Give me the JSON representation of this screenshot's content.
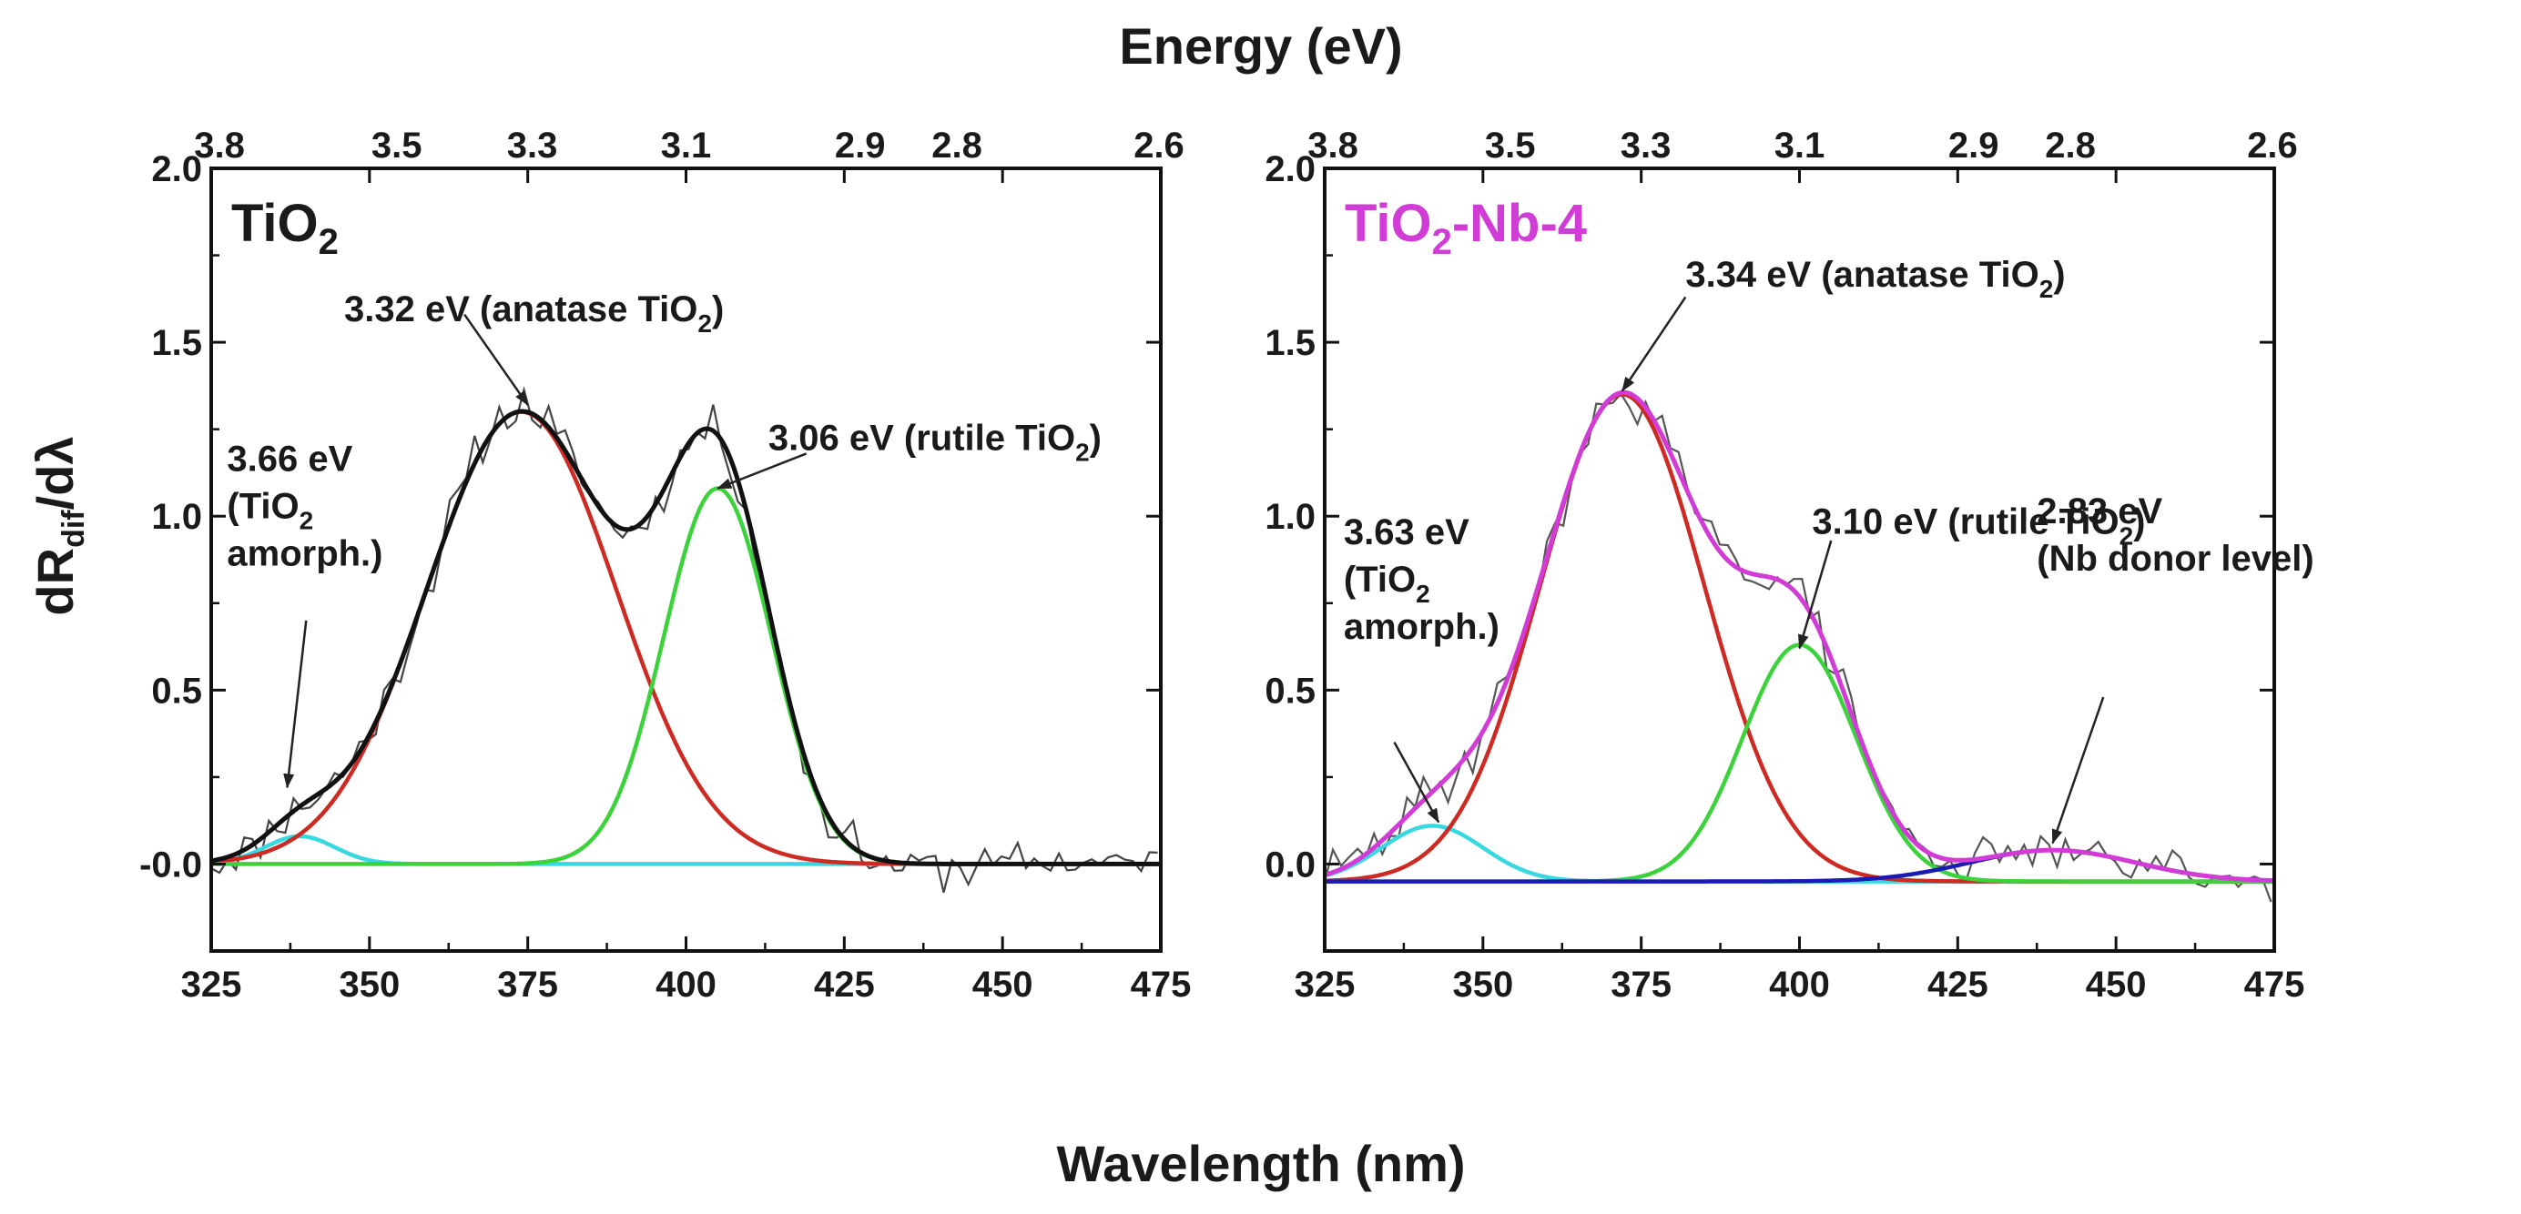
{
  "figure": {
    "top_title": "Energy (eV)",
    "bottom_title": "Wavelength (nm)",
    "ylabel_parts": [
      "dR",
      "dif",
      "/d",
      "λ"
    ]
  },
  "chart_data": [
    {
      "type": "line",
      "panel_label": "TiO2",
      "panel_label_parts": [
        "TiO",
        "2",
        ""
      ],
      "panel_label_color": "#1a1a1a",
      "xlabel": "Wavelength (nm)",
      "x2label": "Energy (eV)",
      "ylabel": "dRdif/dλ",
      "xlim": [
        325,
        475
      ],
      "ylim": [
        -0.25,
        2.0
      ],
      "x_ticks": [
        "325",
        "350",
        "375",
        "400",
        "425",
        "450",
        "475"
      ],
      "y_ticks": [
        "-0.0",
        "0.5",
        "1.0",
        "1.5",
        "2.0"
      ],
      "y_tick_values": [
        0.0,
        0.5,
        1.0,
        1.5,
        2.0
      ],
      "top_ticks": [
        {
          "label": "3.8",
          "nm": 326.3
        },
        {
          "label": "3.5",
          "nm": 354.3
        },
        {
          "label": "3.3",
          "nm": 375.7
        },
        {
          "label": "3.1",
          "nm": 400.0
        },
        {
          "label": "2.9",
          "nm": 427.5
        },
        {
          "label": "2.8",
          "nm": 442.8
        },
        {
          "label": "2.6",
          "nm": 476.9
        }
      ],
      "components": [
        {
          "name": "3.66 eV (TiO2 amorph.)",
          "color": "#38d8e0",
          "center_nm": 339,
          "amplitude": 0.08,
          "width_nm": 5.5
        },
        {
          "name": "3.32 eV (anatase TiO2)",
          "color": "#cc2a22",
          "center_nm": 374,
          "amplitude": 1.3,
          "width_nm": 15.0
        },
        {
          "name": "3.06 eV (rutile TiO2)",
          "color": "#3cd23c",
          "center_nm": 405,
          "amplitude": 1.08,
          "width_nm": 8.5
        }
      ],
      "sum_curve": {
        "name": "cumulative fit",
        "color": "#111111"
      },
      "raw_data": {
        "name": "experimental",
        "color": "#444444",
        "noise_amplitude": 0.055,
        "seed": 11
      },
      "baseline": 0.0,
      "annotations": [
        {
          "lines": [
            [
              {
                "t": "3.32 eV (anatase TiO"
              },
              {
                "t": "2",
                "sub": true
              },
              {
                "t": ")"
              }
            ]
          ],
          "text_nm": 346,
          "text_y": 1.56,
          "arrow_from": [
            365,
            1.58
          ],
          "arrow_to": [
            375,
            1.32
          ]
        },
        {
          "lines": [
            [
              {
                "t": "3.06 eV (rutile TiO"
              },
              {
                "t": "2",
                "sub": true
              },
              {
                "t": ")"
              }
            ]
          ],
          "text_nm": 413,
          "text_y": 1.19,
          "arrow_from": [
            419,
            1.18
          ],
          "arrow_to": [
            405,
            1.08
          ]
        },
        {
          "lines": [
            [
              {
                "t": "3.66 eV"
              }
            ],
            [
              {
                "t": "(TiO"
              },
              {
                "t": "2",
                "sub": true
              }
            ],
            [
              {
                "t": "amorph.)"
              }
            ]
          ],
          "text_nm": 327.5,
          "text_y": 1.13,
          "arrow_from": [
            340,
            0.7
          ],
          "arrow_to": [
            337,
            0.22
          ]
        }
      ]
    },
    {
      "type": "line",
      "panel_label": "TiO2-Nb-4",
      "panel_label_parts": [
        "TiO",
        "2",
        "-Nb-4"
      ],
      "panel_label_color": "#d23cd6",
      "xlabel": "Wavelength (nm)",
      "x2label": "Energy (eV)",
      "ylabel": "dRdif/dλ",
      "xlim": [
        325,
        475
      ],
      "ylim": [
        -0.25,
        2.0
      ],
      "x_ticks": [
        "325",
        "350",
        "375",
        "400",
        "425",
        "450",
        "475"
      ],
      "y_ticks": [
        "0.0",
        "0.5",
        "1.0",
        "1.5",
        "2.0"
      ],
      "y_tick_values": [
        0.0,
        0.5,
        1.0,
        1.5,
        2.0
      ],
      "top_ticks": [
        {
          "label": "3.8",
          "nm": 326.3
        },
        {
          "label": "3.5",
          "nm": 354.3
        },
        {
          "label": "3.3",
          "nm": 375.7
        },
        {
          "label": "3.1",
          "nm": 400.0
        },
        {
          "label": "2.9",
          "nm": 427.5
        },
        {
          "label": "2.8",
          "nm": 442.8
        },
        {
          "label": "2.6",
          "nm": 476.9
        }
      ],
      "components": [
        {
          "name": "3.63 eV (TiO2 amorph.)",
          "color": "#38d8e0",
          "center_nm": 342,
          "amplitude": 0.16,
          "width_nm": 8.0
        },
        {
          "name": "3.34 eV (anatase TiO2)",
          "color": "#cc2a22",
          "center_nm": 372,
          "amplitude": 1.4,
          "width_nm": 13.0
        },
        {
          "name": "3.10 eV (rutile TiO2)",
          "color": "#3cd23c",
          "center_nm": 400,
          "amplitude": 0.68,
          "width_nm": 9.0
        },
        {
          "name": "2.83 eV (Nb donor level)",
          "color": "#1a1ab4",
          "center_nm": 440,
          "amplitude": 0.09,
          "width_nm": 13.0
        }
      ],
      "sum_curve": {
        "name": "cumulative fit",
        "color": "#d23cd6"
      },
      "raw_data": {
        "name": "experimental",
        "color": "#555555",
        "noise_amplitude": 0.05,
        "seed": 29
      },
      "baseline": -0.05,
      "annotations": [
        {
          "lines": [
            [
              {
                "t": "3.34 eV (anatase TiO"
              },
              {
                "t": "2",
                "sub": true
              },
              {
                "t": ")"
              }
            ]
          ],
          "text_nm": 382,
          "text_y": 1.66,
          "arrow_from": [
            382,
            1.63
          ],
          "arrow_to": [
            372,
            1.36
          ]
        },
        {
          "lines": [
            [
              {
                "t": "3.10 eV (rutile TiO"
              },
              {
                "t": "2",
                "sub": true
              },
              {
                "t": ")"
              }
            ]
          ],
          "text_nm": 402,
          "text_y": 0.95,
          "arrow_from": [
            405,
            0.93
          ],
          "arrow_to": [
            400,
            0.62
          ]
        },
        {
          "lines": [
            [
              {
                "t": "3.63 eV"
              }
            ],
            [
              {
                "t": "(TiO"
              },
              {
                "t": "2",
                "sub": true
              }
            ],
            [
              {
                "t": "amorph.)"
              }
            ]
          ],
          "text_nm": 328,
          "text_y": 0.92,
          "arrow_from": [
            336,
            0.35
          ],
          "arrow_to": [
            343,
            0.12
          ]
        },
        {
          "lines": [
            [
              {
                "t": "2.83 eV"
              }
            ],
            [
              {
                "t": "(Nb donor level)"
              }
            ]
          ],
          "text_nm": 437.5,
          "text_y": 0.98,
          "arrow_from": [
            448,
            0.48
          ],
          "arrow_to": [
            440,
            0.06
          ]
        }
      ]
    }
  ]
}
